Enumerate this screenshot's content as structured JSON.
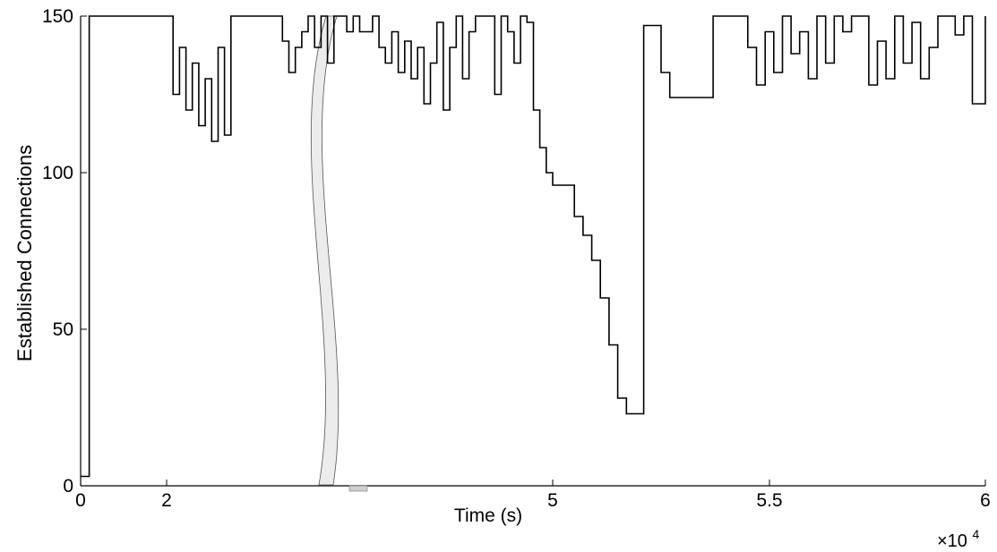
{
  "chart_data": {
    "type": "line",
    "title": "",
    "xlabel": "Time (s)",
    "ylabel": "Established Connections",
    "x_exponent_label": "×10",
    "x_exponent_power": "4",
    "axis_break": true,
    "grid": false,
    "xlim": [
      0,
      60000
    ],
    "ylim": [
      0,
      150
    ],
    "x_ticks": [
      {
        "label": "0",
        "value": 0
      },
      {
        "label": "2",
        "value": 2
      },
      {
        "label": "5",
        "value": 5
      },
      {
        "label": "5.5",
        "value": 5.5
      },
      {
        "label": "6",
        "value": 6
      }
    ],
    "y_ticks": [
      0,
      50,
      100,
      150
    ],
    "series": [
      {
        "color": "#000000",
        "x": [
          0,
          2000,
          3000,
          20000,
          20500,
          21000,
          21500,
          22000,
          22500,
          23000,
          23500,
          24000,
          24500,
          25000,
          25500,
          26000,
          27000,
          28000,
          29000,
          29500,
          30000,
          30500,
          31000,
          31500,
          32000,
          32500,
          33000,
          33500,
          34000,
          34500,
          35000,
          36000,
          36500,
          37000,
          37500,
          38000,
          38500,
          39000,
          39500,
          40000,
          40500,
          41000,
          41500,
          42000,
          42500,
          43000,
          43500,
          44000,
          44500,
          45000,
          45500,
          46000,
          46500,
          47000,
          47500,
          48000,
          48500,
          49000,
          49500,
          50000,
          50500,
          50700,
          50900,
          51100,
          51300,
          51500,
          51700,
          51900,
          52100,
          52300,
          52500,
          52700,
          52900,
          53100,
          53300,
          53500,
          53700,
          53900,
          54100,
          54300,
          54500,
          54700,
          54900,
          55100,
          55300,
          55500,
          55700,
          55900,
          56100,
          56300,
          56500,
          56700,
          56900,
          57100,
          57300,
          57500,
          57700,
          57900,
          58100,
          58300,
          58500,
          58700,
          58900,
          59100,
          59300,
          59500,
          59700,
          60000
        ],
        "y": [
          3,
          150,
          150,
          150,
          125,
          140,
          120,
          135,
          115,
          130,
          110,
          140,
          112,
          150,
          150,
          150,
          150,
          150,
          142,
          132,
          140,
          145,
          150,
          140,
          150,
          135,
          150,
          150,
          145,
          150,
          145,
          150,
          140,
          135,
          145,
          132,
          142,
          130,
          140,
          122,
          135,
          148,
          120,
          140,
          150,
          130,
          145,
          150,
          150,
          150,
          125,
          150,
          145,
          135,
          150,
          148,
          120,
          108,
          100,
          96,
          86,
          80,
          72,
          60,
          45,
          28,
          23,
          23,
          147,
          147,
          132,
          124,
          124,
          124,
          124,
          124,
          150,
          150,
          150,
          150,
          140,
          128,
          145,
          132,
          150,
          138,
          145,
          130,
          150,
          135,
          150,
          145,
          150,
          150,
          128,
          142,
          130,
          150,
          135,
          148,
          130,
          140,
          150,
          150,
          144,
          150,
          122,
          150
        ]
      }
    ]
  }
}
